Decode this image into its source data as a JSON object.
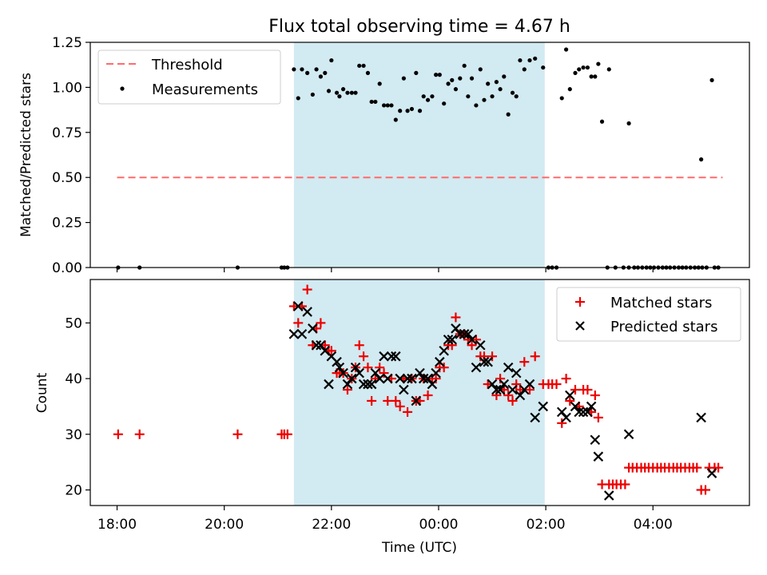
{
  "chart_data": {
    "type": "scatter",
    "title": "Flux total observing time = 4.67 h",
    "xlabel": "Time (UTC)",
    "x_tick_labels": [
      "18:00",
      "20:00",
      "22:00",
      "00:00",
      "02:00",
      "04:00"
    ],
    "x_tick_hours": [
      18,
      20,
      22,
      24,
      26,
      28
    ],
    "xlim_hours": [
      17.5,
      29.8
    ],
    "shaded_interval_hours": [
      21.3,
      25.98
    ],
    "colors": {
      "threshold": "#ff6b6b",
      "matched": "#ee0000",
      "predicted": "#000000",
      "shade": "#add8e6",
      "measurements": "#000000"
    },
    "top_panel": {
      "ylabel": "Matched/Predicted stars",
      "ylim": [
        0,
        1.25
      ],
      "y_ticks": [
        "0.00",
        "0.25",
        "0.50",
        "0.75",
        "1.00",
        "1.25"
      ],
      "legend": {
        "placement": "upper-left",
        "threshold_label": "Threshold",
        "measurements_label": "Measurements"
      },
      "threshold": {
        "value": 0.5,
        "x_range_hours": [
          18.0,
          29.3
        ]
      },
      "measurements": [
        [
          18.02,
          0
        ],
        [
          18.42,
          0
        ],
        [
          20.25,
          0
        ],
        [
          21.07,
          0
        ],
        [
          21.12,
          0
        ],
        [
          21.18,
          0
        ],
        [
          21.3,
          1.1
        ],
        [
          21.38,
          0.94
        ],
        [
          21.45,
          1.1
        ],
        [
          21.55,
          1.08
        ],
        [
          21.65,
          0.96
        ],
        [
          21.72,
          1.1
        ],
        [
          21.8,
          1.06
        ],
        [
          21.88,
          1.08
        ],
        [
          21.95,
          0.98
        ],
        [
          22.0,
          1.15
        ],
        [
          22.1,
          0.97
        ],
        [
          22.15,
          0.95
        ],
        [
          22.22,
          0.99
        ],
        [
          22.3,
          0.97
        ],
        [
          22.38,
          0.97
        ],
        [
          22.45,
          0.97
        ],
        [
          22.52,
          1.12
        ],
        [
          22.6,
          1.12
        ],
        [
          22.68,
          1.08
        ],
        [
          22.75,
          0.92
        ],
        [
          22.82,
          0.92
        ],
        [
          22.9,
          1.02
        ],
        [
          22.98,
          0.9
        ],
        [
          23.05,
          0.9
        ],
        [
          23.12,
          0.9
        ],
        [
          23.2,
          0.82
        ],
        [
          23.28,
          0.87
        ],
        [
          23.35,
          1.05
        ],
        [
          23.42,
          0.87
        ],
        [
          23.5,
          0.88
        ],
        [
          23.58,
          1.08
        ],
        [
          23.65,
          0.87
        ],
        [
          23.72,
          0.95
        ],
        [
          23.8,
          0.93
        ],
        [
          23.88,
          0.95
        ],
        [
          23.95,
          1.07
        ],
        [
          24.02,
          1.07
        ],
        [
          24.1,
          0.91
        ],
        [
          24.18,
          1.02
        ],
        [
          24.25,
          1.04
        ],
        [
          24.32,
          0.99
        ],
        [
          24.4,
          1.05
        ],
        [
          24.48,
          1.12
        ],
        [
          24.55,
          0.95
        ],
        [
          24.62,
          1.05
        ],
        [
          24.7,
          0.9
        ],
        [
          24.78,
          1.1
        ],
        [
          24.85,
          0.93
        ],
        [
          24.92,
          1.02
        ],
        [
          25.0,
          0.95
        ],
        [
          25.08,
          1.03
        ],
        [
          25.15,
          0.99
        ],
        [
          25.22,
          1.06
        ],
        [
          25.3,
          0.85
        ],
        [
          25.38,
          0.97
        ],
        [
          25.45,
          0.95
        ],
        [
          25.52,
          1.15
        ],
        [
          25.6,
          1.1
        ],
        [
          25.7,
          1.15
        ],
        [
          25.8,
          1.16
        ],
        [
          25.95,
          1.11
        ],
        [
          26.05,
          0
        ],
        [
          26.12,
          0
        ],
        [
          26.2,
          0
        ],
        [
          26.3,
          0.94
        ],
        [
          26.38,
          1.21
        ],
        [
          26.45,
          0.99
        ],
        [
          26.55,
          1.08
        ],
        [
          26.62,
          1.1
        ],
        [
          26.7,
          1.11
        ],
        [
          26.78,
          1.11
        ],
        [
          26.85,
          1.06
        ],
        [
          26.92,
          1.06
        ],
        [
          26.98,
          1.13
        ],
        [
          27.05,
          0.81
        ],
        [
          27.18,
          1.1
        ],
        [
          27.15,
          0
        ],
        [
          27.3,
          0
        ],
        [
          27.45,
          0
        ],
        [
          27.55,
          0
        ],
        [
          27.65,
          0
        ],
        [
          27.72,
          0
        ],
        [
          27.8,
          0
        ],
        [
          27.88,
          0
        ],
        [
          27.95,
          0
        ],
        [
          28.02,
          0
        ],
        [
          28.1,
          0
        ],
        [
          28.18,
          0
        ],
        [
          28.25,
          0
        ],
        [
          28.32,
          0
        ],
        [
          28.4,
          0
        ],
        [
          28.48,
          0
        ],
        [
          28.55,
          0
        ],
        [
          28.62,
          0
        ],
        [
          28.7,
          0
        ],
        [
          28.78,
          0
        ],
        [
          28.85,
          0
        ],
        [
          28.92,
          0
        ],
        [
          29.0,
          0
        ],
        [
          29.15,
          0
        ],
        [
          29.22,
          0
        ],
        [
          27.55,
          0.8
        ],
        [
          28.9,
          0.6
        ],
        [
          29.1,
          1.04
        ]
      ]
    },
    "bottom_panel": {
      "ylabel": "Count",
      "ylim": [
        17.2,
        57.8
      ],
      "y_ticks": [
        "20",
        "30",
        "40",
        "50"
      ],
      "y_tick_values": [
        20,
        30,
        40,
        50
      ],
      "legend": {
        "placement": "upper-right",
        "matched_label": "Matched stars",
        "predicted_label": "Predicted stars"
      },
      "matched": [
        [
          18.02,
          30
        ],
        [
          18.42,
          30
        ],
        [
          20.25,
          30
        ],
        [
          21.07,
          30
        ],
        [
          21.12,
          30
        ],
        [
          21.18,
          30
        ],
        [
          21.3,
          53
        ],
        [
          21.38,
          50
        ],
        [
          21.45,
          53
        ],
        [
          21.55,
          56
        ],
        [
          21.65,
          46
        ],
        [
          21.72,
          49
        ],
        [
          21.8,
          50
        ],
        [
          21.88,
          46
        ],
        [
          21.95,
          45
        ],
        [
          22.0,
          45
        ],
        [
          22.1,
          41
        ],
        [
          22.15,
          41
        ],
        [
          22.22,
          41
        ],
        [
          22.3,
          38
        ],
        [
          22.38,
          40
        ],
        [
          22.45,
          42
        ],
        [
          22.52,
          46
        ],
        [
          22.6,
          44
        ],
        [
          22.68,
          42
        ],
        [
          22.75,
          36
        ],
        [
          22.82,
          40
        ],
        [
          22.9,
          42
        ],
        [
          22.98,
          41
        ],
        [
          23.05,
          36
        ],
        [
          23.12,
          40
        ],
        [
          23.2,
          36
        ],
        [
          23.28,
          35
        ],
        [
          23.35,
          40
        ],
        [
          23.42,
          34
        ],
        [
          23.5,
          40
        ],
        [
          23.58,
          36
        ],
        [
          23.65,
          36
        ],
        [
          23.72,
          40
        ],
        [
          23.8,
          37
        ],
        [
          23.88,
          40
        ],
        [
          23.95,
          40
        ],
        [
          24.02,
          42
        ],
        [
          24.1,
          42
        ],
        [
          24.18,
          46
        ],
        [
          24.25,
          46
        ],
        [
          24.32,
          51
        ],
        [
          24.4,
          48
        ],
        [
          24.48,
          48
        ],
        [
          24.55,
          47
        ],
        [
          24.62,
          46
        ],
        [
          24.7,
          47
        ],
        [
          24.78,
          44
        ],
        [
          24.85,
          44
        ],
        [
          24.92,
          39
        ],
        [
          25.0,
          44
        ],
        [
          25.08,
          37
        ],
        [
          25.15,
          40
        ],
        [
          25.22,
          38
        ],
        [
          25.3,
          37
        ],
        [
          25.38,
          36
        ],
        [
          25.45,
          39
        ],
        [
          25.52,
          38
        ],
        [
          25.6,
          43
        ],
        [
          25.7,
          38
        ],
        [
          25.8,
          44
        ],
        [
          25.95,
          39
        ],
        [
          26.05,
          39
        ],
        [
          26.12,
          39
        ],
        [
          26.2,
          39
        ],
        [
          26.3,
          32
        ],
        [
          26.38,
          40
        ],
        [
          26.45,
          36
        ],
        [
          26.55,
          38
        ],
        [
          26.62,
          35
        ],
        [
          26.7,
          38
        ],
        [
          26.78,
          38
        ],
        [
          26.85,
          34
        ],
        [
          26.92,
          37
        ],
        [
          26.98,
          33
        ],
        [
          27.05,
          21
        ],
        [
          27.18,
          21
        ],
        [
          27.25,
          21
        ],
        [
          27.32,
          21
        ],
        [
          27.4,
          21
        ],
        [
          27.48,
          21
        ],
        [
          27.55,
          24
        ],
        [
          27.62,
          24
        ],
        [
          27.7,
          24
        ],
        [
          27.78,
          24
        ],
        [
          27.85,
          24
        ],
        [
          27.92,
          24
        ],
        [
          28.0,
          24
        ],
        [
          28.08,
          24
        ],
        [
          28.15,
          24
        ],
        [
          28.22,
          24
        ],
        [
          28.3,
          24
        ],
        [
          28.38,
          24
        ],
        [
          28.45,
          24
        ],
        [
          28.52,
          24
        ],
        [
          28.6,
          24
        ],
        [
          28.68,
          24
        ],
        [
          28.75,
          24
        ],
        [
          28.82,
          24
        ],
        [
          28.9,
          20
        ],
        [
          28.98,
          20
        ],
        [
          29.05,
          24
        ],
        [
          29.15,
          24
        ],
        [
          29.22,
          24
        ]
      ],
      "predicted": [
        [
          21.3,
          48
        ],
        [
          21.38,
          53
        ],
        [
          21.45,
          48
        ],
        [
          21.55,
          52
        ],
        [
          21.65,
          49
        ],
        [
          21.72,
          46
        ],
        [
          21.8,
          46
        ],
        [
          21.88,
          45
        ],
        [
          21.95,
          39
        ],
        [
          22.0,
          44
        ],
        [
          22.1,
          43
        ],
        [
          22.15,
          42
        ],
        [
          22.22,
          41
        ],
        [
          22.3,
          39
        ],
        [
          22.38,
          40
        ],
        [
          22.45,
          42
        ],
        [
          22.52,
          41
        ],
        [
          22.6,
          39
        ],
        [
          22.68,
          39
        ],
        [
          22.75,
          39
        ],
        [
          22.82,
          41
        ],
        [
          22.9,
          40
        ],
        [
          22.98,
          44
        ],
        [
          23.05,
          40
        ],
        [
          23.12,
          44
        ],
        [
          23.2,
          44
        ],
        [
          23.28,
          40
        ],
        [
          23.35,
          38
        ],
        [
          23.42,
          40
        ],
        [
          23.5,
          40
        ],
        [
          23.58,
          36
        ],
        [
          23.65,
          41
        ],
        [
          23.72,
          40
        ],
        [
          23.8,
          40
        ],
        [
          23.88,
          39
        ],
        [
          23.95,
          41
        ],
        [
          24.02,
          43
        ],
        [
          24.1,
          45
        ],
        [
          24.18,
          47
        ],
        [
          24.25,
          47
        ],
        [
          24.32,
          49
        ],
        [
          24.4,
          48
        ],
        [
          24.48,
          48
        ],
        [
          24.55,
          48
        ],
        [
          24.62,
          47
        ],
        [
          24.7,
          42
        ],
        [
          24.78,
          46
        ],
        [
          24.85,
          43
        ],
        [
          24.92,
          43
        ],
        [
          25.0,
          39
        ],
        [
          25.08,
          38
        ],
        [
          25.15,
          38
        ],
        [
          25.22,
          39
        ],
        [
          25.3,
          42
        ],
        [
          25.38,
          38
        ],
        [
          25.45,
          41
        ],
        [
          25.52,
          37
        ],
        [
          25.6,
          38
        ],
        [
          25.7,
          39
        ],
        [
          25.8,
          33
        ],
        [
          25.95,
          35
        ],
        [
          26.3,
          34
        ],
        [
          26.38,
          33
        ],
        [
          26.45,
          37
        ],
        [
          26.55,
          35
        ],
        [
          26.62,
          34
        ],
        [
          26.7,
          34
        ],
        [
          26.78,
          34
        ],
        [
          26.85,
          35
        ],
        [
          26.92,
          29
        ],
        [
          26.98,
          26
        ],
        [
          27.18,
          19
        ],
        [
          27.55,
          30
        ],
        [
          28.9,
          33
        ],
        [
          29.1,
          23
        ]
      ]
    }
  }
}
